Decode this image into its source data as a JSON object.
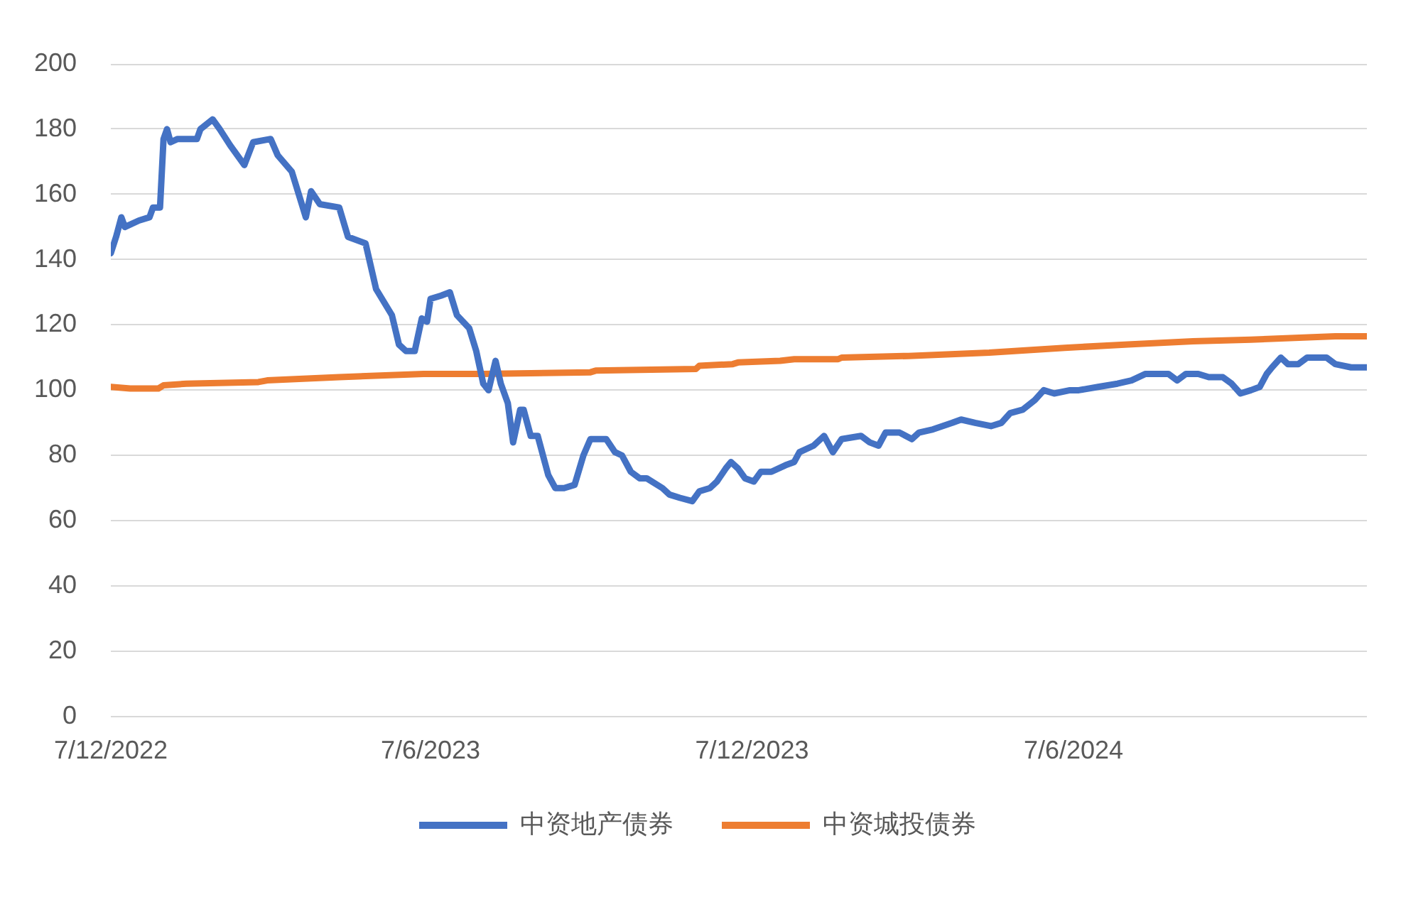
{
  "chart_data": {
    "type": "line",
    "x": [
      "2022-12-07",
      "2022-12-10",
      "2022-12-13",
      "2022-12-15",
      "2022-12-23",
      "2022-12-29",
      "2022-12-31",
      "2023-01-04",
      "2023-01-06",
      "2023-01-08",
      "2023-01-10",
      "2023-01-14",
      "2023-01-25",
      "2023-01-27",
      "2023-02-03",
      "2023-02-07",
      "2023-02-13",
      "2023-02-21",
      "2023-02-26",
      "2023-03-08",
      "2023-03-12",
      "2023-03-20",
      "2023-03-28",
      "2023-03-31",
      "2023-04-05",
      "2023-04-16",
      "2023-04-21",
      "2023-05-01",
      "2023-05-07",
      "2023-05-16",
      "2023-05-20",
      "2023-05-24",
      "2023-05-29",
      "2023-06-02",
      "2023-06-05",
      "2023-06-07",
      "2023-06-13",
      "2023-06-18",
      "2023-06-22",
      "2023-06-29",
      "2023-07-03",
      "2023-07-07",
      "2023-07-10",
      "2023-07-14",
      "2023-07-17",
      "2023-07-21",
      "2023-07-24",
      "2023-07-28",
      "2023-07-30",
      "2023-08-03",
      "2023-08-07",
      "2023-08-13",
      "2023-08-17",
      "2023-08-22",
      "2023-08-28",
      "2023-09-02",
      "2023-09-06",
      "2023-09-15",
      "2023-09-20",
      "2023-09-24",
      "2023-09-29",
      "2023-10-04",
      "2023-10-08",
      "2023-10-17",
      "2023-10-21",
      "2023-10-27",
      "2023-11-03",
      "2023-11-07",
      "2023-11-13",
      "2023-11-17",
      "2023-11-22",
      "2023-11-25",
      "2023-11-29",
      "2023-12-03",
      "2023-12-08",
      "2023-12-12",
      "2023-12-18",
      "2023-12-26",
      "2023-12-31",
      "2024-01-03",
      "2024-01-11",
      "2024-01-17",
      "2024-01-22",
      "2024-01-27",
      "2024-02-07",
      "2024-02-12",
      "2024-02-17",
      "2024-02-21",
      "2024-02-29",
      "2024-03-07",
      "2024-03-11",
      "2024-03-19",
      "2024-03-30",
      "2024-04-04",
      "2024-04-12",
      "2024-04-21",
      "2024-04-27",
      "2024-05-02",
      "2024-05-09",
      "2024-05-16",
      "2024-05-21",
      "2024-05-27",
      "2024-06-05",
      "2024-06-10",
      "2024-06-21",
      "2024-07-02",
      "2024-07-10",
      "2024-07-18",
      "2024-07-24",
      "2024-07-31",
      "2024-08-05",
      "2024-08-10",
      "2024-08-17",
      "2024-08-23",
      "2024-08-31",
      "2024-09-05",
      "2024-09-10",
      "2024-09-16",
      "2024-09-21",
      "2024-09-25",
      "2024-09-28",
      "2024-10-03",
      "2024-10-07",
      "2024-10-13",
      "2024-10-18",
      "2024-10-29",
      "2024-11-03",
      "2024-11-12",
      "2024-11-21"
    ],
    "series": [
      {
        "name": "中资地产债券",
        "color": "#4472c4",
        "values": [
          142,
          147,
          153,
          150,
          152,
          153,
          156,
          156,
          177,
          180,
          176,
          177,
          177,
          180,
          183,
          180,
          175,
          169,
          176,
          177,
          172,
          167,
          153,
          161,
          157,
          156,
          147,
          145,
          131,
          123,
          114,
          112,
          112,
          122,
          121,
          128,
          129,
          130,
          123,
          119,
          112,
          102,
          100,
          109,
          102,
          96,
          84,
          94,
          94,
          86,
          86,
          74,
          70,
          70,
          71,
          80,
          85,
          85,
          81,
          80,
          75,
          73,
          73,
          70,
          68,
          67,
          66,
          69,
          70,
          72,
          76,
          78,
          76,
          73,
          72,
          75,
          75,
          77,
          78,
          81,
          83,
          86,
          81,
          85,
          86,
          84,
          83,
          87,
          87,
          85,
          87,
          88,
          90,
          91,
          90,
          89,
          90,
          93,
          94,
          97,
          100,
          99,
          100,
          100,
          101,
          102,
          103,
          105,
          105,
          105,
          103,
          105,
          105,
          104,
          104,
          102,
          99,
          100,
          101,
          105,
          107,
          110,
          108,
          108,
          110,
          110,
          108,
          107,
          107
        ]
      },
      {
        "name": "中资城投债券",
        "color": "#ed7d31",
        "x": [
          "2022-12-07",
          "2022-12-18",
          "2023-01-03",
          "2023-01-06",
          "2023-01-19",
          "2023-03-01",
          "2023-03-06",
          "2023-04-16",
          "2023-06-03",
          "2023-07-06",
          "2023-09-06",
          "2023-09-09",
          "2023-11-05",
          "2023-11-07",
          "2023-11-26",
          "2023-11-29",
          "2023-12-23",
          "2023-12-31",
          "2024-01-25",
          "2024-01-27",
          "2024-03-05",
          "2024-04-20",
          "2024-06-02",
          "2024-07-08",
          "2024-08-14",
          "2024-09-16",
          "2024-11-03",
          "2024-11-21"
        ],
        "values": [
          101,
          100.5,
          100.5,
          101.5,
          102,
          102.5,
          103,
          104,
          105,
          105,
          105.5,
          106,
          106.5,
          107.5,
          108,
          108.5,
          109,
          109.5,
          109.5,
          110,
          110.5,
          111.5,
          113,
          114,
          115,
          115.5,
          116.5,
          116.5
        ]
      }
    ],
    "xlim": [
      "2022-12-07",
      "2024-11-21"
    ],
    "xticks": [
      {
        "value": "2022-12-07",
        "label": "7/12/2022"
      },
      {
        "value": "2023-06-07",
        "label": "7/6/2023"
      },
      {
        "value": "2023-12-07",
        "label": "7/12/2023"
      },
      {
        "value": "2024-06-07",
        "label": "7/6/2024"
      }
    ],
    "ylim": [
      0,
      200
    ],
    "yticks": [
      0,
      20,
      40,
      60,
      80,
      100,
      120,
      140,
      160,
      180,
      200
    ],
    "grid": "y",
    "legend": "bottom"
  }
}
